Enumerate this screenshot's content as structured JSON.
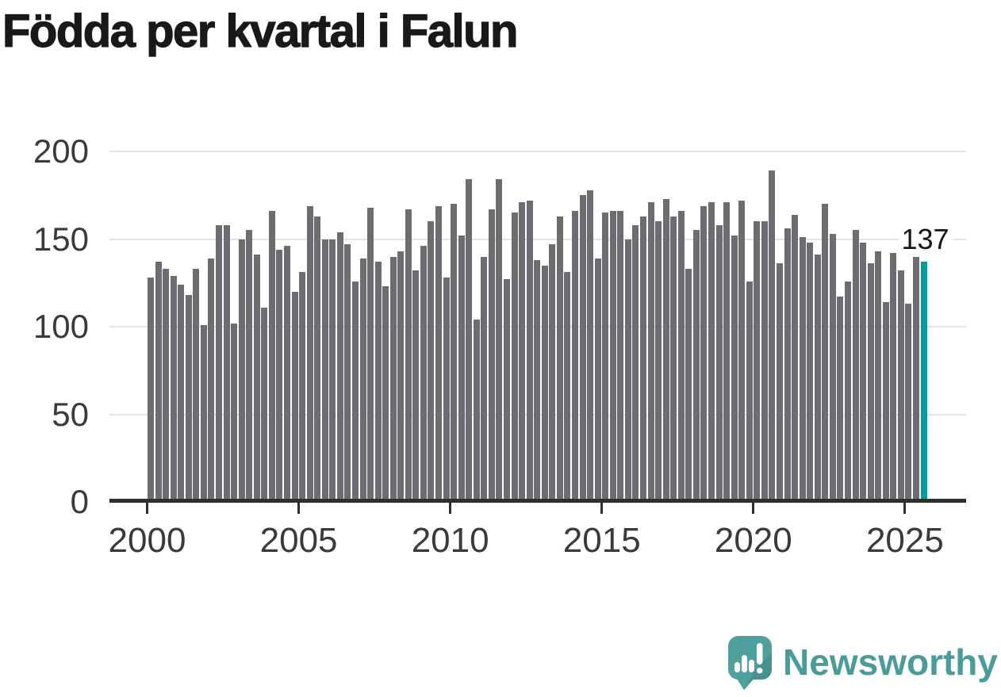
{
  "title": "Födda per kvartal i Falun",
  "annotation": {
    "label": "137"
  },
  "logo": {
    "text": "Newsworthy",
    "icon": "newsworthy-speech-bubble-chart-icon"
  },
  "colors": {
    "bar": "#6d6d71",
    "highlight": "#009e9c",
    "axis": "#2e2e2e",
    "grid": "#e4e4e4",
    "tick_text": "#3a3a3a",
    "title_text": "#191919",
    "brand": "#4a9c9a"
  },
  "chart_data": {
    "type": "bar",
    "title": "Födda per kvartal i Falun",
    "xlabel": "",
    "ylabel": "",
    "x_tick_labels": [
      "2000",
      "2005",
      "2010",
      "2015",
      "2020",
      "2025"
    ],
    "y_tick_labels": [
      "0",
      "50",
      "100",
      "150",
      "200"
    ],
    "y_tick_values": [
      0,
      50,
      100,
      150,
      200
    ],
    "ylim": [
      0,
      200
    ],
    "grid": "horizontal",
    "legend": "none",
    "series_name": "Födda per kvartal",
    "period": "quarterly bars, 2000 Q1 to 2025 Q3",
    "values": [
      128,
      137,
      133,
      129,
      124,
      118,
      133,
      101,
      139,
      158,
      158,
      102,
      150,
      155,
      141,
      111,
      166,
      144,
      146,
      120,
      131,
      169,
      163,
      150,
      150,
      154,
      147,
      126,
      139,
      168,
      137,
      123,
      140,
      143,
      167,
      132,
      146,
      160,
      169,
      128,
      170,
      152,
      184,
      104,
      140,
      167,
      184,
      127,
      165,
      171,
      172,
      138,
      135,
      147,
      163,
      131,
      166,
      175,
      178,
      139,
      165,
      166,
      166,
      150,
      158,
      163,
      171,
      160,
      173,
      163,
      166,
      133,
      155,
      169,
      171,
      158,
      171,
      152,
      172,
      126,
      160,
      160,
      189,
      136,
      156,
      164,
      151,
      148,
      141,
      170,
      153,
      117,
      126,
      155,
      148,
      136,
      143,
      114,
      142,
      132,
      113,
      140,
      137
    ],
    "highlight_index": 102,
    "highlight_value_label": "137"
  }
}
